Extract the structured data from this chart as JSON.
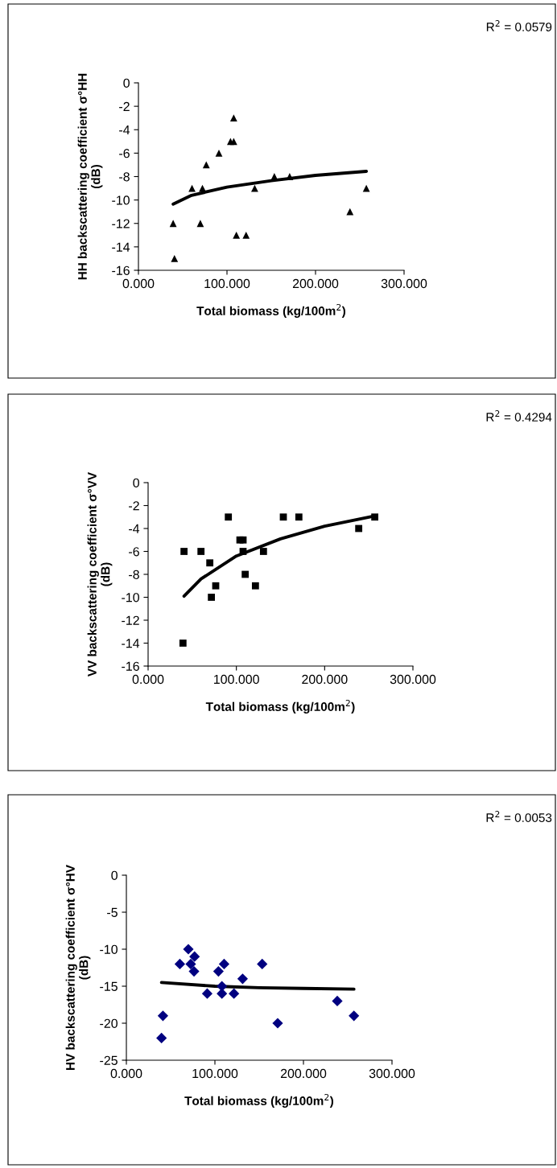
{
  "chart_data": [
    {
      "type": "scatter",
      "xlabel": "Total biomass (kg/100m$^{2}$)",
      "ylabel": "HH backscattering coefficient σ°HH\n(dB)",
      "annotations": [
        "R$^{2}$ = 0.0579"
      ],
      "xlim": [
        0,
        300
      ],
      "xticks": [
        {
          "value": 0,
          "label": "0.000"
        },
        {
          "value": 100,
          "label": "100.000"
        },
        {
          "value": 200,
          "label": "200.000"
        },
        {
          "value": 300,
          "label": "300.000"
        }
      ],
      "ylim": [
        -16,
        0
      ],
      "yticks": [
        -16,
        -14,
        -12,
        -10,
        -8,
        -6,
        -4,
        -2,
        0
      ],
      "grid": false,
      "legend": false,
      "series": [
        {
          "marker": "triangle",
          "color": "#000000",
          "x": [
            39.2,
            40.7,
            60.5,
            69.9,
            72.3,
            76.6,
            90.9,
            104,
            107.6,
            107.6,
            110.6,
            121.6,
            131.3,
            153.5,
            170.8,
            238.9,
            257.4
          ],
          "values": [
            -12,
            -15,
            -9,
            -12,
            -9,
            -7,
            -6,
            -5,
            -5,
            -3,
            -13,
            -13,
            -9,
            -8,
            -8,
            -11,
            -9
          ]
        },
        {
          "type": "line",
          "marker": "none",
          "line_style": "solid",
          "color": "#000000",
          "x": [
            39.2,
            60,
            100,
            150,
            200,
            257.4
          ],
          "values": [
            -10.35,
            -9.6,
            -8.9,
            -8.35,
            -7.9,
            -7.55
          ]
        }
      ]
    },
    {
      "type": "scatter",
      "xlabel": "Total biomass (kg/100m$^{2}$)",
      "ylabel": "VV backscattering coefficient σ°VV\n(dB)",
      "annotations": [
        "R$^{2}$ = 0.4294"
      ],
      "xlim": [
        0,
        300
      ],
      "xticks": [
        {
          "value": 0,
          "label": "0.000"
        },
        {
          "value": 100,
          "label": "100.000"
        },
        {
          "value": 200,
          "label": "200.000"
        },
        {
          "value": 300,
          "label": "300.000"
        }
      ],
      "ylim": [
        -16,
        0
      ],
      "yticks": [
        -16,
        -14,
        -12,
        -10,
        -8,
        -6,
        -4,
        -2,
        0
      ],
      "grid": false,
      "legend": false,
      "series": [
        {
          "marker": "square",
          "color": "#000000",
          "x": [
            39.5,
            40.7,
            59.9,
            69.9,
            71.7,
            76.6,
            90.9,
            104,
            107.6,
            107.6,
            110,
            121.6,
            130.7,
            153.2,
            170.8,
            238.6,
            256.8
          ],
          "values": [
            -14,
            -6,
            -6,
            -7,
            -10,
            -9,
            -3,
            -5,
            -5,
            -6,
            -8,
            -9,
            -6,
            -3,
            -3,
            -4,
            -3
          ]
        },
        {
          "type": "line",
          "marker": "none",
          "line_style": "solid",
          "color": "#000000",
          "x": [
            40.7,
            60,
            100,
            150,
            200,
            256.8
          ],
          "values": [
            -9.9,
            -8.4,
            -6.4,
            -4.9,
            -3.8,
            -2.9
          ]
        }
      ]
    },
    {
      "type": "scatter",
      "xlabel": "Total biomass (kg/100m$^{2}$)",
      "ylabel": "HV backscattering coefficient σ°HV\n(dB)",
      "annotations": [
        "R$^{2}$ = 0.0053"
      ],
      "xlim": [
        0,
        300
      ],
      "xticks": [
        {
          "value": 0,
          "label": "0.000"
        },
        {
          "value": 100,
          "label": "100.000"
        },
        {
          "value": 200,
          "label": "200.000"
        },
        {
          "value": 300,
          "label": "300.000"
        }
      ],
      "ylim": [
        -25,
        0
      ],
      "yticks": [
        -25,
        -20,
        -15,
        -10,
        -5,
        0
      ],
      "grid": false,
      "legend": false,
      "series": [
        {
          "marker": "diamond",
          "color": "#000080",
          "x": [
            39.7,
            41.3,
            60.4,
            70,
            72.7,
            76.4,
            77,
            91.3,
            104,
            107.9,
            107.9,
            110.4,
            121.5,
            131.3,
            153.4,
            170.9,
            238.2,
            257
          ],
          "values": [
            -22,
            -19,
            -12,
            -10,
            -12,
            -13,
            -11,
            -16,
            -13,
            -15,
            -16,
            -12,
            -16,
            -14,
            -12,
            -20,
            -17,
            -19
          ]
        },
        {
          "type": "line",
          "marker": "none",
          "line_style": "solid",
          "color": "#000000",
          "x": [
            39.7,
            100,
            150,
            200,
            257
          ],
          "values": [
            -14.5,
            -15.0,
            -15.2,
            -15.3,
            -15.4
          ]
        }
      ]
    }
  ]
}
